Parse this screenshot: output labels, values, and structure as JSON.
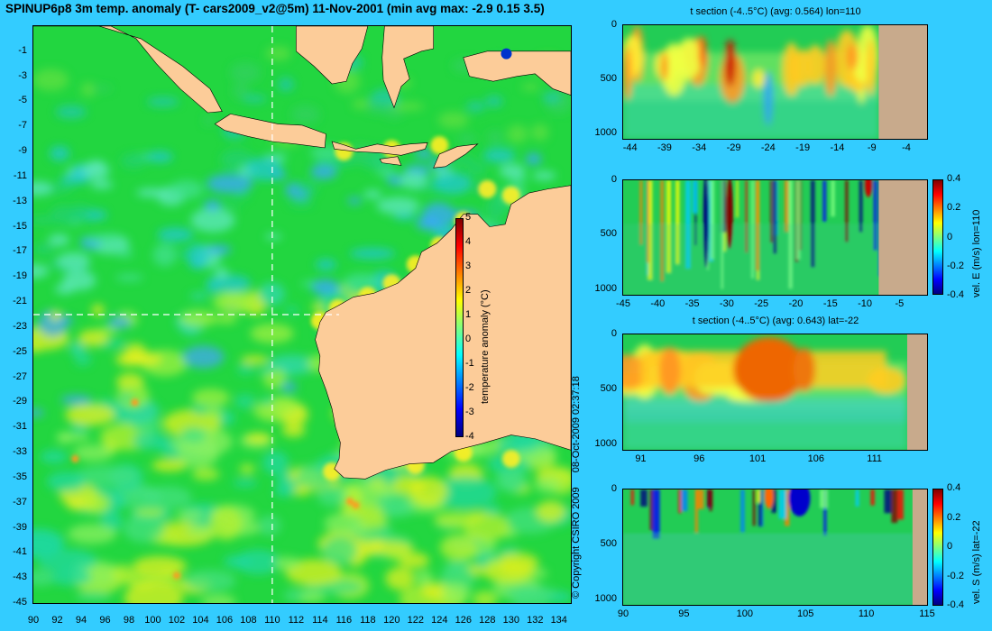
{
  "title": "SPINUP6p8 3m temp. anomaly (T- cars2009_v2@5m) 11-Nov-2001 (min avg max: -2.9 0.15 3.5)",
  "colors": {
    "background": "#33ccff",
    "land": "#fccc99",
    "section_land": "#c8aa8c",
    "colormap": [
      "#00007f",
      "#0000ff",
      "#007fff",
      "#00ffff",
      "#7fff7f",
      "#ffff00",
      "#ff7f00",
      "#ff0000",
      "#7f0000"
    ]
  },
  "copyright": "© Copyright CSIRO 2009",
  "timestamp": "08-Oct-2009 02:37:18",
  "chart_data": [
    {
      "id": "map",
      "type": "heatmap",
      "title": "SPINUP6p8 3m temp. anomaly (T- cars2009_v2@5m) 11-Nov-2001 (min avg max: -2.9 0.15 3.5)",
      "x_ticks": [
        "90",
        "92",
        "94",
        "96",
        "98",
        "100",
        "102",
        "104",
        "106",
        "108",
        "110",
        "112",
        "114",
        "116",
        "118",
        "120",
        "122",
        "124",
        "126",
        "128",
        "130",
        "132",
        "134"
      ],
      "y_ticks": [
        "-1",
        "-3",
        "-5",
        "-7",
        "-9",
        "-11",
        "-13",
        "-15",
        "-17",
        "-19",
        "-21",
        "-23",
        "-25",
        "-27",
        "-29",
        "-31",
        "-33",
        "-35",
        "-37",
        "-39",
        "-41",
        "-43",
        "-45"
      ],
      "xlim": [
        90,
        135
      ],
      "ylim": [
        -45,
        1
      ],
      "stats": {
        "min": -2.9,
        "avg": 0.15,
        "max": 3.5
      },
      "section_lines": {
        "lon": 110,
        "lat": -22
      },
      "colorbar": {
        "label": "temperature anomaly (°C)",
        "range": [
          -4,
          5
        ],
        "ticks": [
          "5",
          "4",
          "3",
          "2",
          "1",
          "0",
          "-1",
          "-2",
          "-3",
          "-4"
        ]
      }
    },
    {
      "id": "t-section-lon",
      "type": "heatmap",
      "title": "t section (-4..5°C) (avg: 0.564) lon=110",
      "x_ticks": [
        "-44",
        "-39",
        "-34",
        "-29",
        "-24",
        "-19",
        "-14",
        "-9",
        "-4"
      ],
      "y_ticks": [
        "0",
        "500",
        "1000"
      ],
      "xlim": [
        -45,
        -1
      ],
      "ylim": [
        1050,
        0
      ],
      "land_from": -8
    },
    {
      "id": "vel-e-section",
      "type": "heatmap",
      "title": "",
      "x_ticks": [
        "-45",
        "-40",
        "-35",
        "-30",
        "-25",
        "-20",
        "-15",
        "-10",
        "-5"
      ],
      "y_ticks": [
        "0",
        "500",
        "1000"
      ],
      "xlim": [
        -45,
        -1
      ],
      "ylim": [
        1050,
        0
      ],
      "land_from": -8,
      "colorbar": {
        "label": "vel. E (m/s) lon=110",
        "range": [
          -0.4,
          0.4
        ],
        "ticks": [
          "0.4",
          "0.2",
          "0",
          "-0.2",
          "-0.4"
        ]
      }
    },
    {
      "id": "t-section-lat",
      "type": "heatmap",
      "title": "t section (-4..5°C) (avg: 0.643) lat=-22",
      "x_ticks": [
        "91",
        "96",
        "101",
        "106",
        "111"
      ],
      "y_ticks": [
        "0",
        "500",
        "1000"
      ],
      "xlim": [
        89.5,
        115.5
      ],
      "ylim": [
        1050,
        0
      ],
      "land_from": 113.8
    },
    {
      "id": "vel-s-section",
      "type": "heatmap",
      "title": "",
      "x_ticks": [
        "90",
        "95",
        "100",
        "105",
        "110",
        "115"
      ],
      "y_ticks": [
        "0",
        "500",
        "1000"
      ],
      "xlim": [
        90,
        115
      ],
      "ylim": [
        1050,
        0
      ],
      "land_from": 113.8,
      "colorbar": {
        "label": "vel. S (m/s) lat=-22",
        "range": [
          -0.4,
          0.4
        ],
        "ticks": [
          "0.4",
          "0.2",
          "0",
          "-0.2",
          "-0.4"
        ]
      }
    }
  ]
}
